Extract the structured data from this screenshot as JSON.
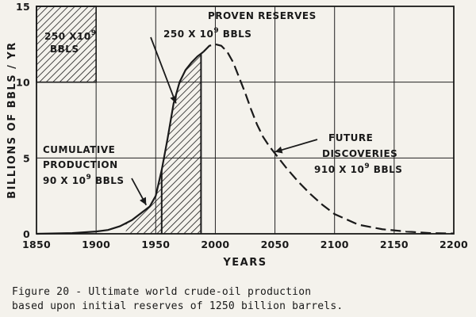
{
  "chart_data": {
    "type": "line",
    "xlabel": "YEARS",
    "ylabel": "BILLIONS OF BBLS / YR",
    "xlim": [
      1850,
      2200
    ],
    "ylim": [
      0,
      15
    ],
    "x_ticks": [
      "1850",
      "1900",
      "1950",
      "2000",
      "2050",
      "2100",
      "2150",
      "2200"
    ],
    "y_ticks": [
      "0",
      "5",
      "10",
      "15"
    ],
    "grid": true,
    "series": [
      {
        "segment": "historical",
        "style": "solid",
        "x": [
          1850,
          1880,
          1900,
          1910,
          1920,
          1930,
          1940,
          1945,
          1950,
          1955,
          1960,
          1965,
          1970,
          1975,
          1980,
          1985,
          1990
        ],
        "y": [
          0,
          0.05,
          0.15,
          0.25,
          0.5,
          0.9,
          1.5,
          1.8,
          2.5,
          4.2,
          6.3,
          8.6,
          10.0,
          10.8,
          11.3,
          11.7,
          12.0
        ]
      },
      {
        "segment": "projected",
        "style": "dashed",
        "x": [
          1990,
          1995,
          2000,
          2005,
          2010,
          2015,
          2020,
          2025,
          2030,
          2035,
          2040,
          2045,
          2050,
          2060,
          2070,
          2080,
          2090,
          2100,
          2120,
          2140,
          2160,
          2180,
          2200
        ],
        "y": [
          12.0,
          12.4,
          12.5,
          12.4,
          12.0,
          11.3,
          10.3,
          9.3,
          8.2,
          7.2,
          6.4,
          5.8,
          5.3,
          4.3,
          3.4,
          2.6,
          1.9,
          1.3,
          0.6,
          0.3,
          0.15,
          0.05,
          0.02
        ]
      }
    ],
    "annotations": [
      {
        "id": "proven_title",
        "text": "PROVEN RESERVES"
      },
      {
        "id": "proven_value",
        "text": "250 X 10",
        "sup": "9",
        "suffix": " BBLS"
      },
      {
        "id": "legend_top",
        "text": "250 X10",
        "sup": "9"
      },
      {
        "id": "legend_bottom",
        "text": "BBLS"
      },
      {
        "id": "cum_title",
        "text": "CUMULATIVE"
      },
      {
        "id": "cum_sub",
        "text": "PRODUCTION"
      },
      {
        "id": "cum_value",
        "text": "90 X 10",
        "sup": "9",
        "suffix": " BBLS"
      },
      {
        "id": "fut_title",
        "text": "FUTURE"
      },
      {
        "id": "fut_sub",
        "text": "DISCOVERIES"
      },
      {
        "id": "fut_value",
        "text": "910 X 10",
        "sup": "9",
        "suffix": " BBLS"
      }
    ],
    "caption": [
      "Figure 20 - Ultimate world crude-oil production",
      "based upon initial reserves of 1250 billion barrels."
    ]
  }
}
